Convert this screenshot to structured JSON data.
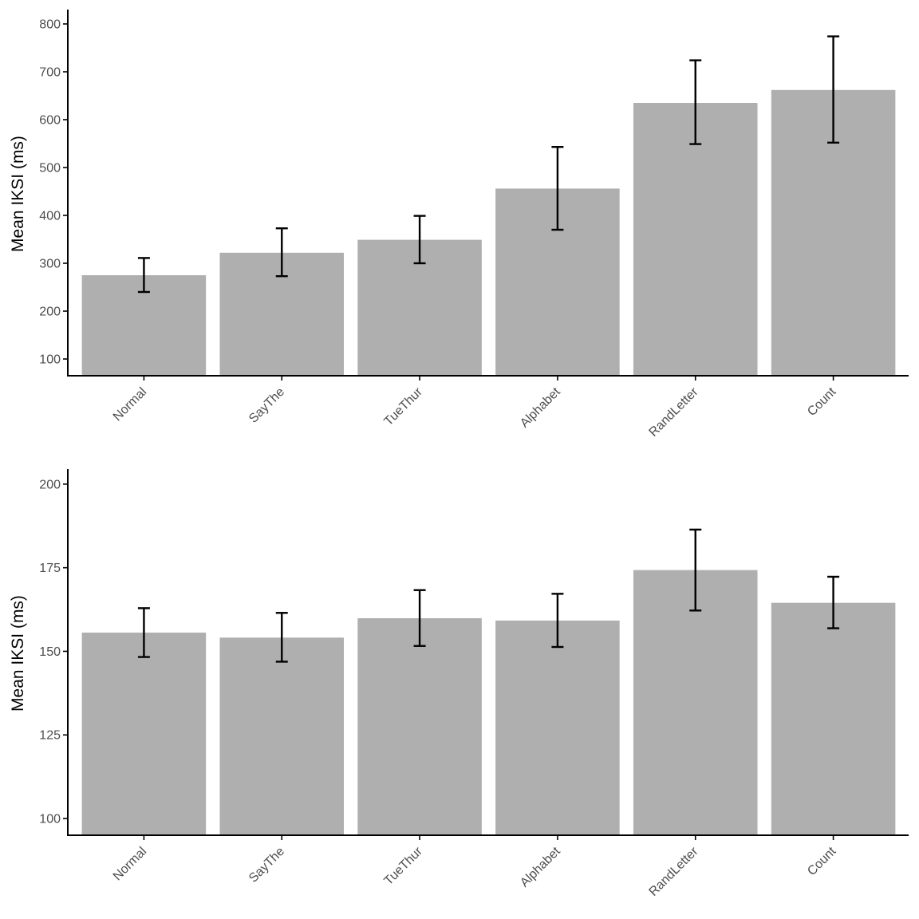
{
  "colors": {
    "bar": "#afafaf",
    "axis": "#000000",
    "tick_text": "#4d4d4d",
    "error_bar": "#000000"
  },
  "chart_data": [
    {
      "type": "bar",
      "categories": [
        "Normal",
        "SayThe",
        "TueThur",
        "Alphabet",
        "RandLetter",
        "Count"
      ],
      "values": [
        275,
        322,
        349,
        456,
        635,
        662
      ],
      "error_low": [
        240,
        273,
        300,
        370,
        549,
        552
      ],
      "error_high": [
        311,
        373,
        399,
        543,
        724,
        774
      ],
      "ylabel": "Mean IKSI (ms)",
      "xlabel": "",
      "ylim": [
        65,
        830
      ],
      "yticks": [
        100,
        200,
        300,
        400,
        500,
        600,
        700,
        800
      ],
      "grid": false
    },
    {
      "type": "bar",
      "categories": [
        "Normal",
        "SayThe",
        "TueThur",
        "Alphabet",
        "RandLetter",
        "Count"
      ],
      "values": [
        155.6,
        154.1,
        159.9,
        159.2,
        174.3,
        164.5
      ],
      "error_low": [
        148.3,
        146.9,
        151.6,
        151.3,
        162.2,
        156.9
      ],
      "error_high": [
        162.9,
        161.5,
        168.3,
        167.2,
        186.4,
        172.3
      ],
      "ylabel": "Mean IKSI (ms)",
      "xlabel": "",
      "ylim": [
        95,
        204.5
      ],
      "yticks": [
        100,
        125,
        150,
        175,
        200
      ],
      "grid": false
    }
  ]
}
